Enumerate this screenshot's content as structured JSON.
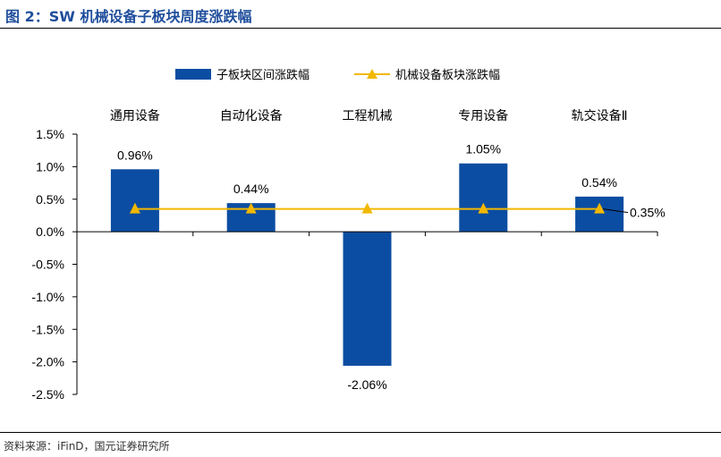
{
  "figure": {
    "title": "图 2：SW 机械设备子板块周度涨跌幅",
    "source": "资料来源：iFinD，国元证券研究所"
  },
  "colors": {
    "bar": "#0b4da2",
    "line": "#f2b800",
    "title": "#1f4e9c",
    "axis": "#000000"
  },
  "chart_data": {
    "type": "bar",
    "categories": [
      "通用设备",
      "自动化设备",
      "工程机械",
      "专用设备",
      "轨交设备Ⅱ"
    ],
    "series": [
      {
        "name": "子板块区间涨跌幅",
        "type": "bar",
        "values": [
          0.96,
          0.44,
          -2.06,
          1.05,
          0.54
        ],
        "labels": [
          "0.96%",
          "0.44%",
          "-2.06%",
          "1.05%",
          "0.54%"
        ]
      },
      {
        "name": "机械设备板块涨跌幅",
        "type": "line",
        "marker": "triangle",
        "values": [
          0.35,
          0.35,
          0.35,
          0.35,
          0.35
        ],
        "label": "0.35%"
      }
    ],
    "yticks": [
      "1.5%",
      "1.0%",
      "0.5%",
      "0.0%",
      "-0.5%",
      "-1.0%",
      "-1.5%",
      "-2.0%",
      "-2.5%"
    ],
    "ylim": [
      -2.5,
      1.5
    ],
    "category_position": "top",
    "legend_position": "top",
    "grid": false
  }
}
